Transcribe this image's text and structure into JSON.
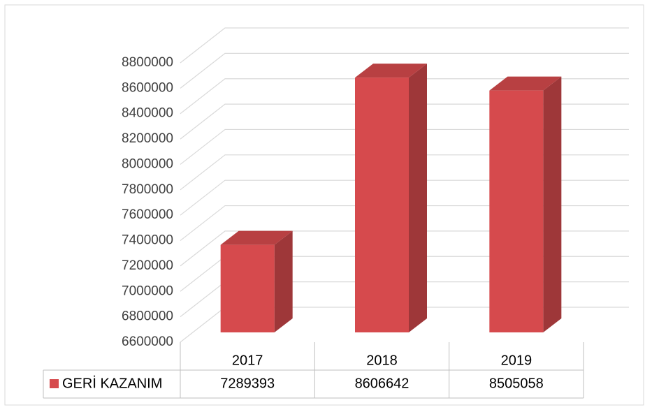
{
  "chart_data": {
    "type": "bar",
    "categories": [
      "2017",
      "2018",
      "2019"
    ],
    "series": [
      {
        "name": "GERİ KAZANIM",
        "color": "#d64a4d",
        "values": [
          7289393,
          8606642,
          8505058
        ]
      }
    ],
    "ylim": [
      6600000,
      8800000
    ],
    "yticks": [
      6600000,
      6800000,
      7000000,
      7200000,
      7400000,
      7600000,
      7800000,
      8000000,
      8200000,
      8400000,
      8600000,
      8800000
    ],
    "grid": true,
    "data_table": true
  }
}
